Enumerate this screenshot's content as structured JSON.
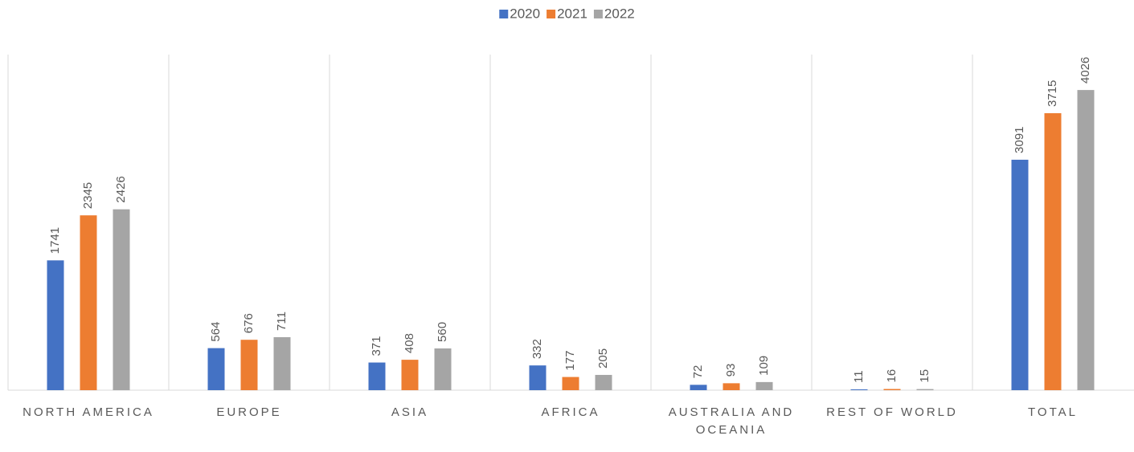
{
  "chart_data": {
    "type": "bar",
    "categories": [
      "NORTH AMERICA",
      "EUROPE",
      "ASIA",
      "AFRICA",
      "AUSTRALIA AND OCEANIA",
      "REST OF WORLD",
      "TOTAL"
    ],
    "series": [
      {
        "name": "2020",
        "color": "#4472c4",
        "values": [
          1741,
          564,
          371,
          332,
          72,
          11,
          3091
        ]
      },
      {
        "name": "2021",
        "color": "#ed7d31",
        "values": [
          2345,
          676,
          408,
          177,
          93,
          16,
          3715
        ]
      },
      {
        "name": "2022",
        "color": "#a5a5a5",
        "values": [
          2426,
          711,
          560,
          205,
          109,
          15,
          4026
        ]
      }
    ],
    "legend": "top"
  }
}
